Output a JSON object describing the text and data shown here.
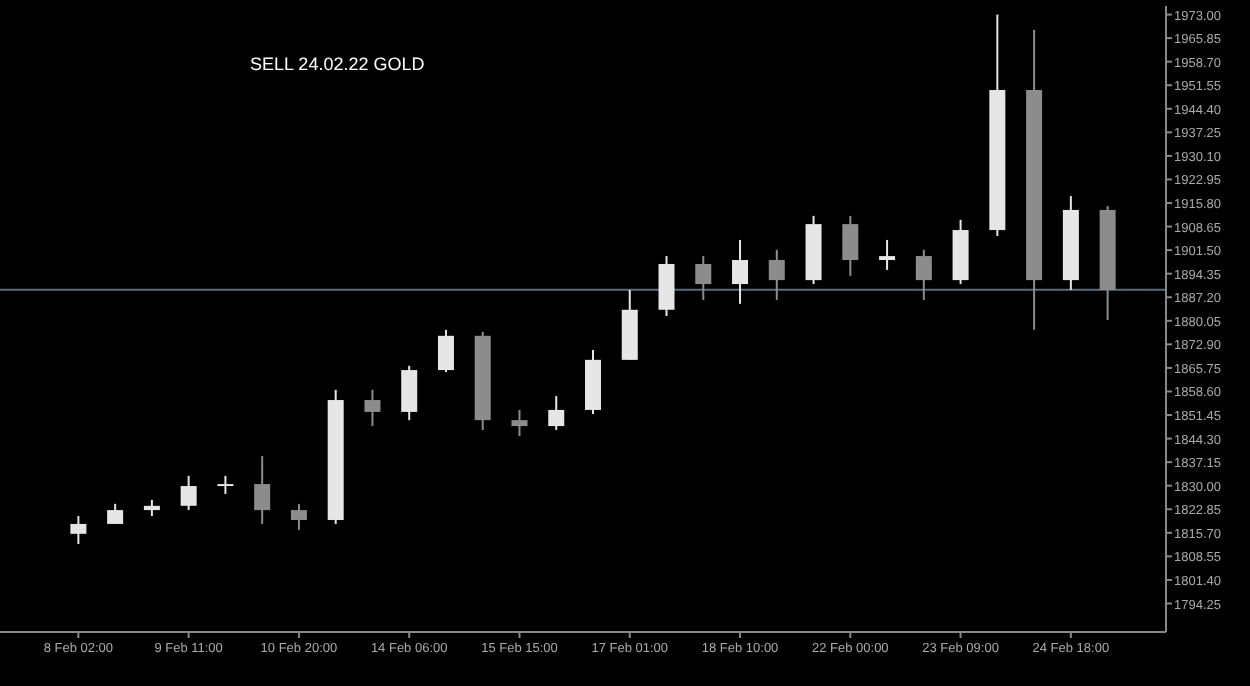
{
  "chart_data": {
    "type": "candlestick",
    "title": "SELL 24.02.22 GOLD",
    "colors": [
      "#e6e6e6",
      "#e6e6e6",
      "#e6e6e6",
      "#e6e6e6",
      "#e6e6e6",
      "#8c8c8c",
      "#8c8c8c",
      "#e6e6e6",
      "#8c8c8c",
      "#e6e6e6",
      "#e6e6e6",
      "#8c8c8c",
      "#8c8c8c",
      "#e6e6e6",
      "#e6e6e6",
      "#e6e6e6",
      "#e6e6e6",
      "#8c8c8c",
      "#e6e6e6",
      "#8c8c8c",
      "#e6e6e6",
      "#8c8c8c",
      "#e6e6e6",
      "#8c8c8c",
      "#e6e6e6",
      "#e6e6e6",
      "#8c8c8c",
      "#e6e6e6",
      "#8c8c8c"
    ],
    "categories": [
      "8 Feb 02:00",
      null,
      null,
      "9 Feb 11:00",
      null,
      null,
      "10 Feb 20:00",
      null,
      null,
      "14 Feb 06:00",
      null,
      null,
      "15 Feb 15:00",
      null,
      null,
      "17 Feb 01:00",
      null,
      null,
      "18 Feb 10:00",
      null,
      null,
      "22 Feb 00:00",
      null,
      null,
      "23 Feb 09:00",
      null,
      null,
      "24 Feb 18:00",
      null
    ],
    "ohlc": [
      [
        1815.4,
        1820.8,
        1812.3,
        1818.4
      ],
      [
        1818.4,
        1824.5,
        1818.4,
        1822.6
      ],
      [
        1822.6,
        1825.7,
        1820.8,
        1823.9
      ],
      [
        1823.9,
        1833.0,
        1822.6,
        1829.9
      ],
      [
        1829.9,
        1833.0,
        1827.5,
        1830.5
      ],
      [
        1830.5,
        1839.0,
        1818.4,
        1822.6
      ],
      [
        1822.6,
        1824.5,
        1816.6,
        1819.6
      ],
      [
        1819.6,
        1859.1,
        1818.4,
        1856.0
      ],
      [
        1856.0,
        1859.1,
        1848.1,
        1852.4
      ],
      [
        1852.4,
        1866.4,
        1849.9,
        1865.1
      ],
      [
        1865.1,
        1877.3,
        1864.5,
        1875.5
      ],
      [
        1875.5,
        1876.7,
        1846.9,
        1849.9
      ],
      [
        1849.9,
        1853.0,
        1845.1,
        1848.1
      ],
      [
        1848.1,
        1857.2,
        1846.9,
        1853.0
      ],
      [
        1853.0,
        1871.2,
        1851.8,
        1868.2
      ],
      [
        1868.2,
        1889.4,
        1868.2,
        1883.4
      ],
      [
        1883.4,
        1899.7,
        1881.5,
        1897.3
      ],
      [
        1897.3,
        1899.7,
        1886.4,
        1891.2
      ],
      [
        1891.2,
        1904.6,
        1885.2,
        1898.5
      ],
      [
        1898.5,
        1901.6,
        1886.4,
        1892.4
      ],
      [
        1892.4,
        1911.9,
        1891.2,
        1909.4
      ],
      [
        1909.4,
        1911.9,
        1893.7,
        1898.5
      ],
      [
        1898.5,
        1904.6,
        1895.5,
        1899.7
      ],
      [
        1899.7,
        1901.6,
        1886.4,
        1892.4
      ],
      [
        1892.4,
        1910.7,
        1891.2,
        1907.6
      ],
      [
        1907.6,
        1973.0,
        1905.8,
        1950.1
      ],
      [
        1950.1,
        1968.3,
        1877.3,
        1892.4
      ],
      [
        1892.4,
        1917.9,
        1889.4,
        1913.7
      ],
      [
        1913.7,
        1914.9,
        1880.3,
        1889.4
      ]
    ],
    "ylim": [
      1785.6,
      1975.6
    ],
    "yticks": [
      {
        "value": 1973,
        "label": "1973.00"
      },
      {
        "value": 1965.85,
        "label": "1965.85"
      },
      {
        "value": 1958.7,
        "label": "1958.70"
      },
      {
        "value": 1951.55,
        "label": "1951.55"
      },
      {
        "value": 1944.4,
        "label": "1944.40"
      },
      {
        "value": 1937.25,
        "label": "1937.25"
      },
      {
        "value": 1930.1,
        "label": "1930.10"
      },
      {
        "value": 1922.95,
        "label": "1922.95"
      },
      {
        "value": 1915.8,
        "label": "1915.80"
      },
      {
        "value": 1908.65,
        "label": "1908.65"
      },
      {
        "value": 1901.5,
        "label": "1901.50"
      },
      {
        "value": 1894.35,
        "label": "1894.35"
      },
      {
        "value": 1887.2,
        "label": "1887.20"
      },
      {
        "value": 1880.05,
        "label": "1880.05"
      },
      {
        "value": 1872.9,
        "label": "1872.90"
      },
      {
        "value": 1865.75,
        "label": "1865.75"
      },
      {
        "value": 1858.6,
        "label": "1858.60"
      },
      {
        "value": 1851.45,
        "label": "1851.45"
      },
      {
        "value": 1844.3,
        "label": "1844.30"
      },
      {
        "value": 1837.15,
        "label": "1837.15"
      },
      {
        "value": 1830,
        "label": "1830.00"
      },
      {
        "value": 1822.85,
        "label": "1822.85"
      },
      {
        "value": 1815.7,
        "label": "1815.70"
      },
      {
        "value": 1808.55,
        "label": "1808.55"
      },
      {
        "value": 1801.4,
        "label": "1801.40"
      },
      {
        "value": 1794.25,
        "label": "1794.25"
      }
    ],
    "ref_lines": [
      {
        "axis": "y",
        "value": 1889.5,
        "color": "#5a6b7c"
      }
    ]
  }
}
